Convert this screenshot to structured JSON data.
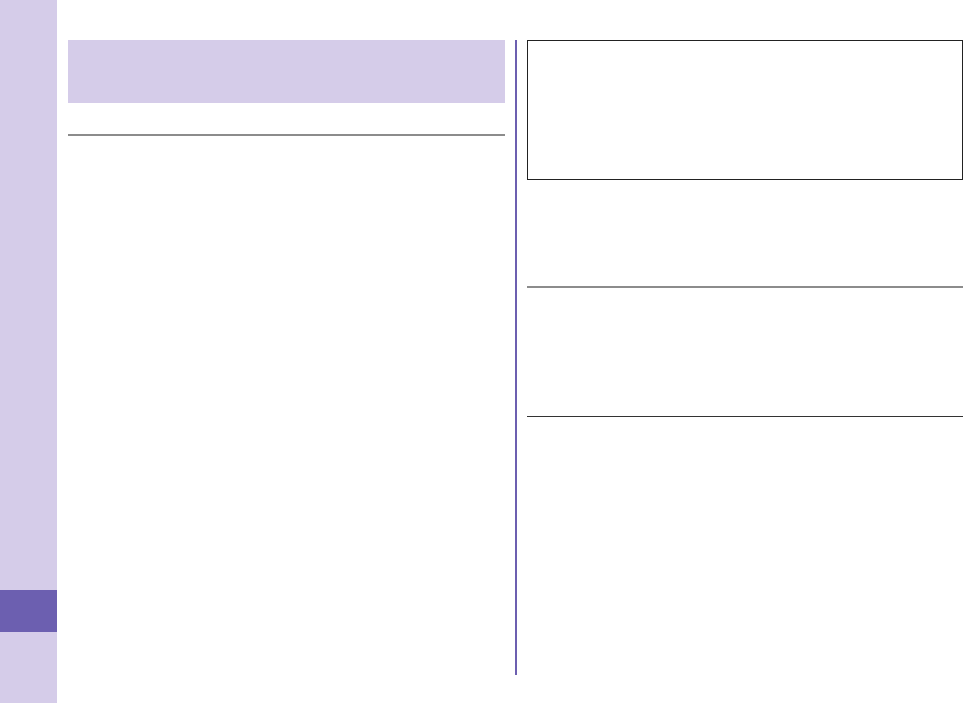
{
  "colors": {
    "sidebar": "#d5cce9",
    "accent": "#6c5fb0",
    "rule": "#8c8c8c"
  }
}
